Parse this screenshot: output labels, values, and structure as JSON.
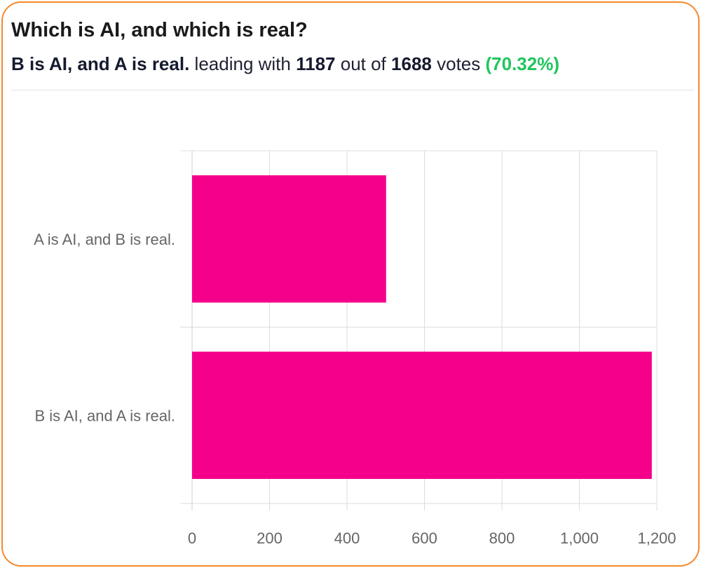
{
  "poll": {
    "question": "Which is AI, and which is real?",
    "leader_label": "B is AI, and A is real.",
    "leading_with_text": "leading with",
    "leader_votes": "1187",
    "out_of_text": "out of",
    "total_votes": "1688",
    "votes_text": "votes",
    "leader_percent": "(70.32%)"
  },
  "colors": {
    "bar": "#f5008b",
    "percent": "#22c55e",
    "border": "#f5892e"
  },
  "chart_data": {
    "type": "bar",
    "orientation": "horizontal",
    "categories": [
      "A is AI, and B is real.",
      "B is AI, and A is real."
    ],
    "values": [
      501,
      1187
    ],
    "xlim": [
      0,
      1200
    ],
    "xticks": [
      0,
      200,
      400,
      600,
      800,
      1000,
      1200
    ],
    "xtick_labels": [
      "0",
      "200",
      "400",
      "600",
      "800",
      "1,000",
      "1,200"
    ],
    "grid": true,
    "title": "",
    "xlabel": "",
    "ylabel": ""
  }
}
